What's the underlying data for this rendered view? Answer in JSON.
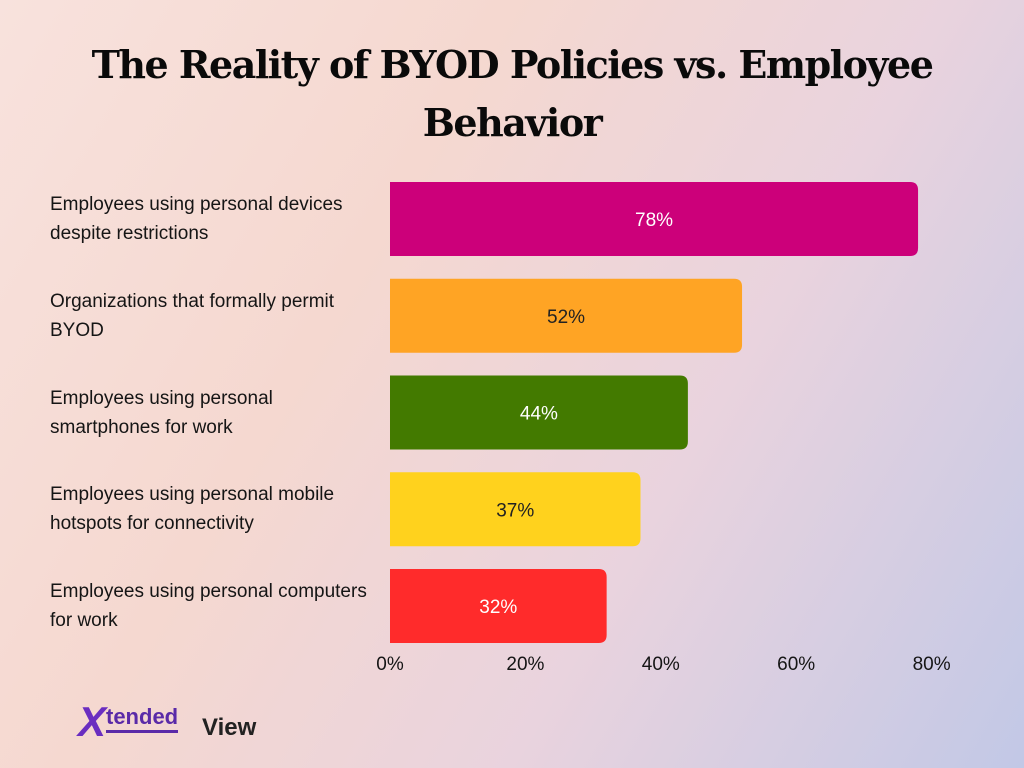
{
  "chart_data": {
    "type": "bar",
    "orientation": "horizontal",
    "title": "The Reality of BYOD Policies vs. Employee Behavior",
    "categories": [
      "Employees using personal devices despite restrictions",
      "Organizations that formally permit BYOD",
      "Employees using personal smartphones for work",
      "Employees using personal mobile hotspots for connectivity",
      "Employees using personal computers for work"
    ],
    "values": [
      78,
      52,
      44,
      37,
      32
    ],
    "value_labels": [
      "78%",
      "52%",
      "44%",
      "37%",
      "32%"
    ],
    "bar_colors": [
      "#cc007a",
      "#ffa424",
      "#437a00",
      "#ffd21d",
      "#ff2b2b"
    ],
    "value_label_colors": [
      "#ffffff",
      "#222222",
      "#ffffff",
      "#222222",
      "#ffffff"
    ],
    "xlim": [
      0,
      80
    ],
    "x_ticks": [
      0,
      20,
      40,
      60,
      80
    ],
    "x_tick_labels": [
      "0%",
      "20%",
      "40%",
      "60%",
      "80%"
    ],
    "xlabel": "",
    "ylabel": "",
    "grid": false,
    "legend": false
  },
  "brand": {
    "logo_x": "X",
    "logo_tended": "tended",
    "logo_view": "View",
    "primary_color": "#6a2dc0",
    "accent_color": "#f2c21b"
  }
}
